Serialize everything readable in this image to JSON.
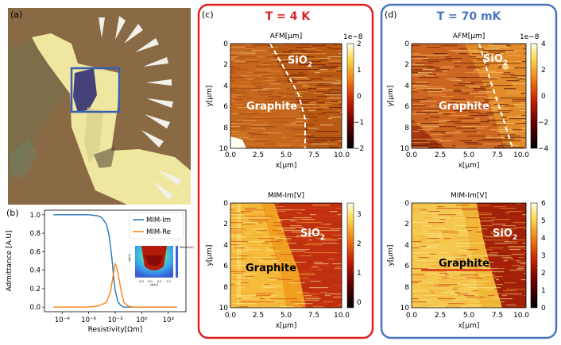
{
  "panel_a": {
    "label": "(a)",
    "colors": {
      "substrate": "#8a6a44",
      "flake": "#efe7a0",
      "graphite": "#45427a",
      "electrode": "#f2f0ea",
      "box": "#3a5fb0"
    }
  },
  "panel_b": {
    "label": "(b)",
    "inset_colorbar_label": "MIM-Im(V)",
    "inset_y_label": "z[μm]",
    "inset_x_label": "x[μm]",
    "inset_x_ticks": [
      "-0.5",
      "0.0",
      "0.5",
      "1.0"
    ]
  },
  "panel_c": {
    "label": "(c)",
    "title": "T = 4 K",
    "border_color": "#e02020"
  },
  "panel_d": {
    "label": "(d)",
    "title": "T = 70 mK",
    "border_color": "#4a76c0"
  },
  "maps": {
    "x_ticks": [
      "0.0",
      "2.5",
      "5.0",
      "7.5",
      "10.0"
    ],
    "y_ticks": [
      "0",
      "2",
      "4",
      "6",
      "8",
      "10"
    ],
    "x_label": "x[μm]",
    "y_label": "y[μm]",
    "afm_title": "AFM[μm]",
    "mim_title": "MIM-Im[V]",
    "scale_exp": "1e−8",
    "label_graphite": "Graphite",
    "label_sio2": "SiO",
    "label_sio2_sub": "2",
    "c_afm_cbar": [
      "2",
      "1",
      "0",
      "−1",
      "−2"
    ],
    "c_mim_cbar": [
      "3",
      "2",
      "1",
      "0"
    ],
    "d_afm_cbar": [
      "4",
      "2",
      "0",
      "−2",
      "−4"
    ],
    "d_mim_cbar": [
      "6",
      "5",
      "4",
      "3",
      "2",
      "1",
      "0"
    ]
  },
  "chart_data": {
    "type": "line",
    "title": "",
    "xlabel": "Resistivity[Ωm]",
    "ylabel": "Admittance [A.U]",
    "x_scale": "log",
    "xlim": [
      1e-11,
      100000.0
    ],
    "ylim": [
      -0.05,
      1.05
    ],
    "x_tick_labels": [
      "10⁻⁹",
      "10⁻⁶",
      "10⁻³",
      "10⁰",
      "10³"
    ],
    "x_tick_values": [
      1e-09,
      1e-06,
      0.001,
      1,
      1000
    ],
    "y_tick_labels": [
      "0.0",
      "0.2",
      "0.4",
      "0.6",
      "0.8",
      "1.0"
    ],
    "y_tick_values": [
      0,
      0.2,
      0.4,
      0.6,
      0.8,
      1.0
    ],
    "legend_position": "top-right",
    "series": [
      {
        "name": "MIM-Im",
        "color": "#1f77b4",
        "x": [
          1e-10,
          1e-08,
          1e-06,
          1e-05,
          3e-05,
          0.0001,
          0.0002,
          0.0004,
          0.0007,
          0.001,
          0.002,
          0.004,
          0.01,
          0.1,
          1,
          1000,
          10000
        ],
        "y": [
          1.0,
          1.0,
          1.0,
          0.99,
          0.97,
          0.9,
          0.78,
          0.55,
          0.3,
          0.18,
          0.06,
          0.02,
          0.0,
          0.0,
          0.0,
          0.0,
          0.0
        ]
      },
      {
        "name": "MIM-Re",
        "color": "#ff7f0e",
        "x": [
          1e-10,
          1e-06,
          1e-05,
          0.0001,
          0.0003,
          0.0006,
          0.001,
          0.0015,
          0.003,
          0.006,
          0.01,
          0.03,
          0.1,
          1,
          1000,
          10000
        ],
        "y": [
          0.0,
          0.0,
          0.01,
          0.05,
          0.17,
          0.35,
          0.47,
          0.43,
          0.28,
          0.12,
          0.05,
          0.01,
          0.0,
          0.0,
          0.0,
          0.0
        ]
      }
    ]
  }
}
